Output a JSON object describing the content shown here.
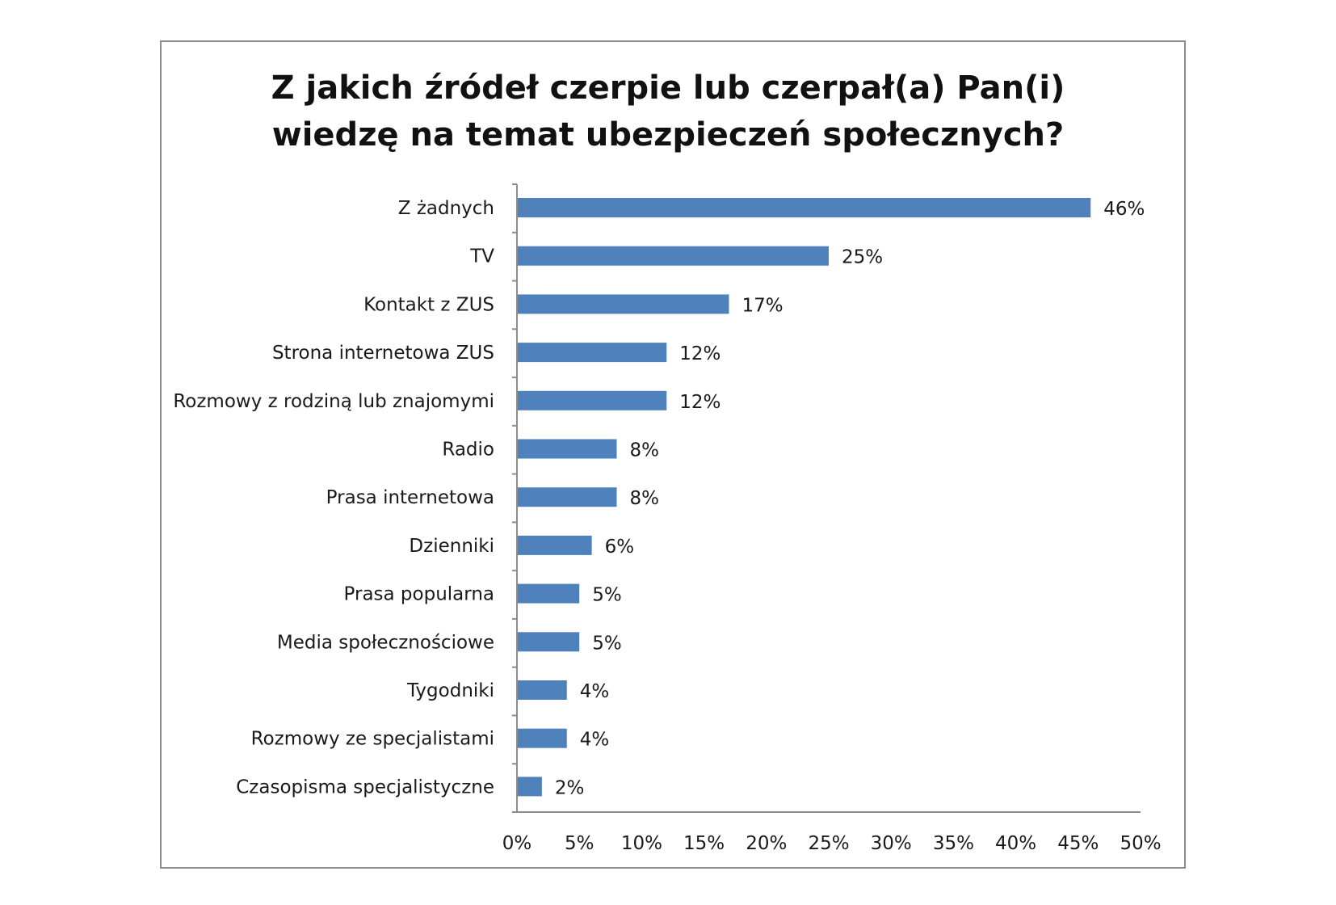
{
  "chart_data": {
    "type": "bar",
    "orientation": "horizontal",
    "title_lines": [
      "Z jakich źródeł czerpie lub czerpał(a) Pan(i)",
      "wiedzę na temat ubezpieczeń społecznych?"
    ],
    "categories": [
      "Z żadnych",
      "TV",
      "Kontakt z ZUS",
      "Strona internetowa ZUS",
      "Rozmowy z rodziną lub znajomymi",
      "Radio",
      "Prasa internetowa",
      "Dzienniki",
      "Prasa popularna",
      "Media społecznościowe",
      "Tygodniki",
      "Rozmowy ze specjalistami",
      "Czasopisma specjalistyczne"
    ],
    "values": [
      46,
      25,
      17,
      12,
      12,
      8,
      8,
      6,
      5,
      5,
      4,
      4,
      2
    ],
    "value_labels": [
      "46%",
      "25%",
      "17%",
      "12%",
      "12%",
      "8%",
      "8%",
      "6%",
      "5%",
      "5%",
      "4%",
      "4%",
      "2%"
    ],
    "xlim": [
      0,
      50
    ],
    "xticks": [
      "0%",
      "5%",
      "10%",
      "15%",
      "20%",
      "25%",
      "30%",
      "35%",
      "40%",
      "45%",
      "50%"
    ],
    "bar_color": "#4f81bd",
    "grid": false,
    "legend": "none"
  }
}
